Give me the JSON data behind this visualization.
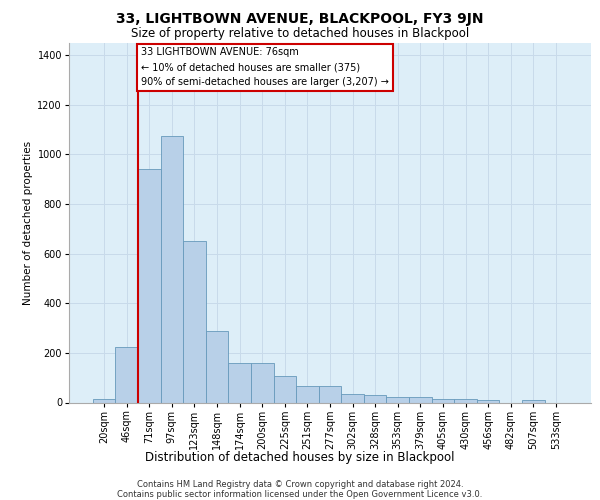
{
  "title": "33, LIGHTBOWN AVENUE, BLACKPOOL, FY3 9JN",
  "subtitle": "Size of property relative to detached houses in Blackpool",
  "xlabel": "Distribution of detached houses by size in Blackpool",
  "ylabel": "Number of detached properties",
  "footer_line1": "Contains HM Land Registry data © Crown copyright and database right 2024.",
  "footer_line2": "Contains public sector information licensed under the Open Government Licence v3.0.",
  "categories": [
    "20sqm",
    "46sqm",
    "71sqm",
    "97sqm",
    "123sqm",
    "148sqm",
    "174sqm",
    "200sqm",
    "225sqm",
    "251sqm",
    "277sqm",
    "302sqm",
    "328sqm",
    "353sqm",
    "379sqm",
    "405sqm",
    "430sqm",
    "456sqm",
    "482sqm",
    "507sqm",
    "533sqm"
  ],
  "values": [
    15,
    225,
    940,
    1075,
    650,
    290,
    160,
    160,
    105,
    65,
    65,
    35,
    30,
    22,
    22,
    15,
    15,
    12,
    0,
    12,
    0
  ],
  "bar_color": "#b8d0e8",
  "bar_edge_color": "#6699bb",
  "annotation_text": "33 LIGHTBOWN AVENUE: 76sqm\n← 10% of detached houses are smaller (375)\n90% of semi-detached houses are larger (3,207) →",
  "annotation_box_color": "#ffffff",
  "annotation_box_edge": "#cc0000",
  "vline_color": "#cc0000",
  "vline_x": 1.5,
  "ylim": [
    0,
    1450
  ],
  "yticks": [
    0,
    200,
    400,
    600,
    800,
    1000,
    1200,
    1400
  ],
  "grid_color": "#c8daea",
  "bg_color": "#ddeef8",
  "title_fontsize": 10,
  "subtitle_fontsize": 8.5,
  "ylabel_fontsize": 7.5,
  "xlabel_fontsize": 8.5,
  "tick_fontsize": 7,
  "annotation_fontsize": 7,
  "footer_fontsize": 6
}
